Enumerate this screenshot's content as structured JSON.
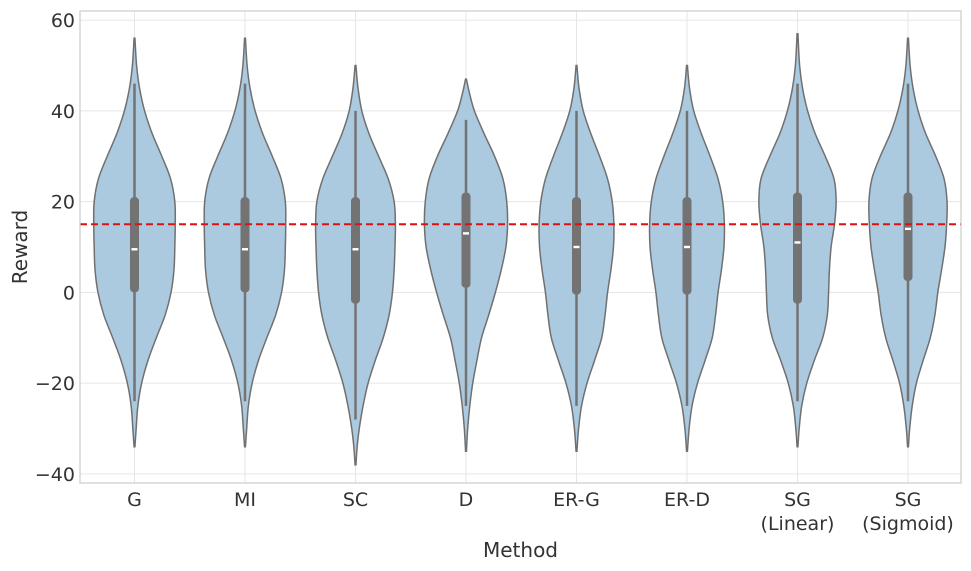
{
  "chart_data": {
    "type": "violin",
    "title": "",
    "xlabel": "Method",
    "ylabel": "Reward",
    "ylim": [
      -42,
      62
    ],
    "yticks": [
      -40,
      -20,
      0,
      20,
      40,
      60
    ],
    "ytick_labels": [
      "−40",
      "−20",
      "0",
      "20",
      "40",
      "60"
    ],
    "grid": true,
    "violin_color": "#abcae0",
    "outline_color": "#707070",
    "box_color": "#737373",
    "median_color": "#ffffff",
    "reference_line": {
      "y": 15,
      "color": "#dd1111",
      "style": "dashed"
    },
    "categories": [
      {
        "lines": [
          "G"
        ]
      },
      {
        "lines": [
          "MI"
        ]
      },
      {
        "lines": [
          "SC"
        ]
      },
      {
        "lines": [
          "D"
        ]
      },
      {
        "lines": [
          "ER-G"
        ]
      },
      {
        "lines": [
          "ER-D"
        ]
      },
      {
        "lines": [
          "SG",
          "(Linear)"
        ]
      },
      {
        "lines": [
          "SG",
          "(Sigmoid)"
        ]
      }
    ],
    "series": [
      {
        "name": "G",
        "median": 9.5,
        "q1": 0,
        "q3": 21,
        "whisker_low": -24,
        "whisker_high": 46,
        "min": -34,
        "max": 56,
        "density": [
          [
            -34,
            0.01
          ],
          [
            -30,
            0.04
          ],
          [
            -25,
            0.08
          ],
          [
            -20,
            0.17
          ],
          [
            -15,
            0.32
          ],
          [
            -10,
            0.52
          ],
          [
            -5,
            0.73
          ],
          [
            0,
            0.87
          ],
          [
            5,
            0.94
          ],
          [
            10,
            0.96
          ],
          [
            15,
            0.97
          ],
          [
            20,
            0.96
          ],
          [
            25,
            0.86
          ],
          [
            30,
            0.65
          ],
          [
            35,
            0.42
          ],
          [
            40,
            0.24
          ],
          [
            45,
            0.12
          ],
          [
            50,
            0.05
          ],
          [
            56,
            0.01
          ]
        ]
      },
      {
        "name": "MI",
        "median": 9.5,
        "q1": 0,
        "q3": 21,
        "whisker_low": -24,
        "whisker_high": 46,
        "min": -34,
        "max": 56,
        "density": [
          [
            -34,
            0.01
          ],
          [
            -30,
            0.04
          ],
          [
            -25,
            0.08
          ],
          [
            -20,
            0.17
          ],
          [
            -15,
            0.32
          ],
          [
            -10,
            0.52
          ],
          [
            -5,
            0.73
          ],
          [
            0,
            0.87
          ],
          [
            5,
            0.94
          ],
          [
            10,
            0.96
          ],
          [
            15,
            0.97
          ],
          [
            20,
            0.96
          ],
          [
            25,
            0.86
          ],
          [
            30,
            0.65
          ],
          [
            35,
            0.42
          ],
          [
            40,
            0.24
          ],
          [
            45,
            0.12
          ],
          [
            50,
            0.05
          ],
          [
            56,
            0.01
          ]
        ]
      },
      {
        "name": "SC",
        "median": 9.5,
        "q1": -2.5,
        "q3": 21,
        "whisker_low": -28,
        "whisker_high": 40,
        "min": -38,
        "max": 50,
        "density": [
          [
            -38,
            0.01
          ],
          [
            -34,
            0.04
          ],
          [
            -30,
            0.09
          ],
          [
            -25,
            0.18
          ],
          [
            -20,
            0.3
          ],
          [
            -15,
            0.47
          ],
          [
            -10,
            0.66
          ],
          [
            -5,
            0.8
          ],
          [
            0,
            0.88
          ],
          [
            5,
            0.92
          ],
          [
            10,
            0.94
          ],
          [
            15,
            0.95
          ],
          [
            20,
            0.92
          ],
          [
            25,
            0.78
          ],
          [
            30,
            0.55
          ],
          [
            35,
            0.32
          ],
          [
            40,
            0.15
          ],
          [
            45,
            0.06
          ],
          [
            50,
            0.01
          ]
        ]
      },
      {
        "name": "D",
        "median": 13,
        "q1": 1,
        "q3": 22,
        "whisker_low": -25,
        "whisker_high": 38,
        "min": -35,
        "max": 47,
        "density": [
          [
            -35,
            0.01
          ],
          [
            -30,
            0.04
          ],
          [
            -25,
            0.09
          ],
          [
            -20,
            0.16
          ],
          [
            -15,
            0.26
          ],
          [
            -10,
            0.37
          ],
          [
            -5,
            0.54
          ],
          [
            0,
            0.7
          ],
          [
            5,
            0.84
          ],
          [
            10,
            0.95
          ],
          [
            15,
            0.99
          ],
          [
            20,
            0.97
          ],
          [
            25,
            0.88
          ],
          [
            30,
            0.68
          ],
          [
            35,
            0.43
          ],
          [
            40,
            0.2
          ],
          [
            44,
            0.08
          ],
          [
            47,
            0.01
          ]
        ]
      },
      {
        "name": "ER-G",
        "median": 10,
        "q1": -0.5,
        "q3": 21,
        "whisker_low": -25,
        "whisker_high": 40,
        "min": -35,
        "max": 50,
        "density": [
          [
            -35,
            0.01
          ],
          [
            -30,
            0.05
          ],
          [
            -25,
            0.12
          ],
          [
            -20,
            0.25
          ],
          [
            -15,
            0.43
          ],
          [
            -10,
            0.6
          ],
          [
            -5,
            0.68
          ],
          [
            0,
            0.74
          ],
          [
            5,
            0.82
          ],
          [
            10,
            0.88
          ],
          [
            15,
            0.89
          ],
          [
            20,
            0.85
          ],
          [
            25,
            0.74
          ],
          [
            30,
            0.55
          ],
          [
            35,
            0.34
          ],
          [
            40,
            0.16
          ],
          [
            45,
            0.06
          ],
          [
            50,
            0.01
          ]
        ]
      },
      {
        "name": "ER-D",
        "median": 10,
        "q1": -0.5,
        "q3": 21,
        "whisker_low": -25,
        "whisker_high": 40,
        "min": -35,
        "max": 50,
        "density": [
          [
            -35,
            0.01
          ],
          [
            -30,
            0.05
          ],
          [
            -25,
            0.12
          ],
          [
            -20,
            0.25
          ],
          [
            -15,
            0.43
          ],
          [
            -10,
            0.6
          ],
          [
            -5,
            0.68
          ],
          [
            0,
            0.74
          ],
          [
            5,
            0.82
          ],
          [
            10,
            0.88
          ],
          [
            15,
            0.89
          ],
          [
            20,
            0.85
          ],
          [
            25,
            0.74
          ],
          [
            30,
            0.55
          ],
          [
            35,
            0.34
          ],
          [
            40,
            0.16
          ],
          [
            45,
            0.06
          ],
          [
            50,
            0.01
          ]
        ]
      },
      {
        "name": "SG (Linear)",
        "median": 11,
        "q1": -2.5,
        "q3": 22,
        "whisker_low": -24,
        "whisker_high": 46,
        "min": -34,
        "max": 57,
        "density": [
          [
            -34,
            0.01
          ],
          [
            -30,
            0.04
          ],
          [
            -25,
            0.1
          ],
          [
            -20,
            0.22
          ],
          [
            -15,
            0.4
          ],
          [
            -10,
            0.6
          ],
          [
            -5,
            0.71
          ],
          [
            0,
            0.74
          ],
          [
            5,
            0.76
          ],
          [
            10,
            0.8
          ],
          [
            15,
            0.88
          ],
          [
            20,
            0.92
          ],
          [
            25,
            0.87
          ],
          [
            30,
            0.66
          ],
          [
            35,
            0.42
          ],
          [
            40,
            0.24
          ],
          [
            45,
            0.12
          ],
          [
            50,
            0.05
          ],
          [
            57,
            0.01
          ]
        ]
      },
      {
        "name": "SG (Sigmoid)",
        "median": 14,
        "q1": 2.5,
        "q3": 22,
        "whisker_low": -24,
        "whisker_high": 46,
        "min": -34,
        "max": 56,
        "density": [
          [
            -34,
            0.01
          ],
          [
            -30,
            0.04
          ],
          [
            -25,
            0.1
          ],
          [
            -20,
            0.2
          ],
          [
            -15,
            0.36
          ],
          [
            -10,
            0.53
          ],
          [
            -5,
            0.64
          ],
          [
            0,
            0.71
          ],
          [
            5,
            0.8
          ],
          [
            10,
            0.88
          ],
          [
            15,
            0.92
          ],
          [
            20,
            0.93
          ],
          [
            25,
            0.86
          ],
          [
            30,
            0.66
          ],
          [
            35,
            0.42
          ],
          [
            40,
            0.24
          ],
          [
            45,
            0.12
          ],
          [
            50,
            0.05
          ],
          [
            56,
            0.01
          ]
        ]
      }
    ]
  }
}
